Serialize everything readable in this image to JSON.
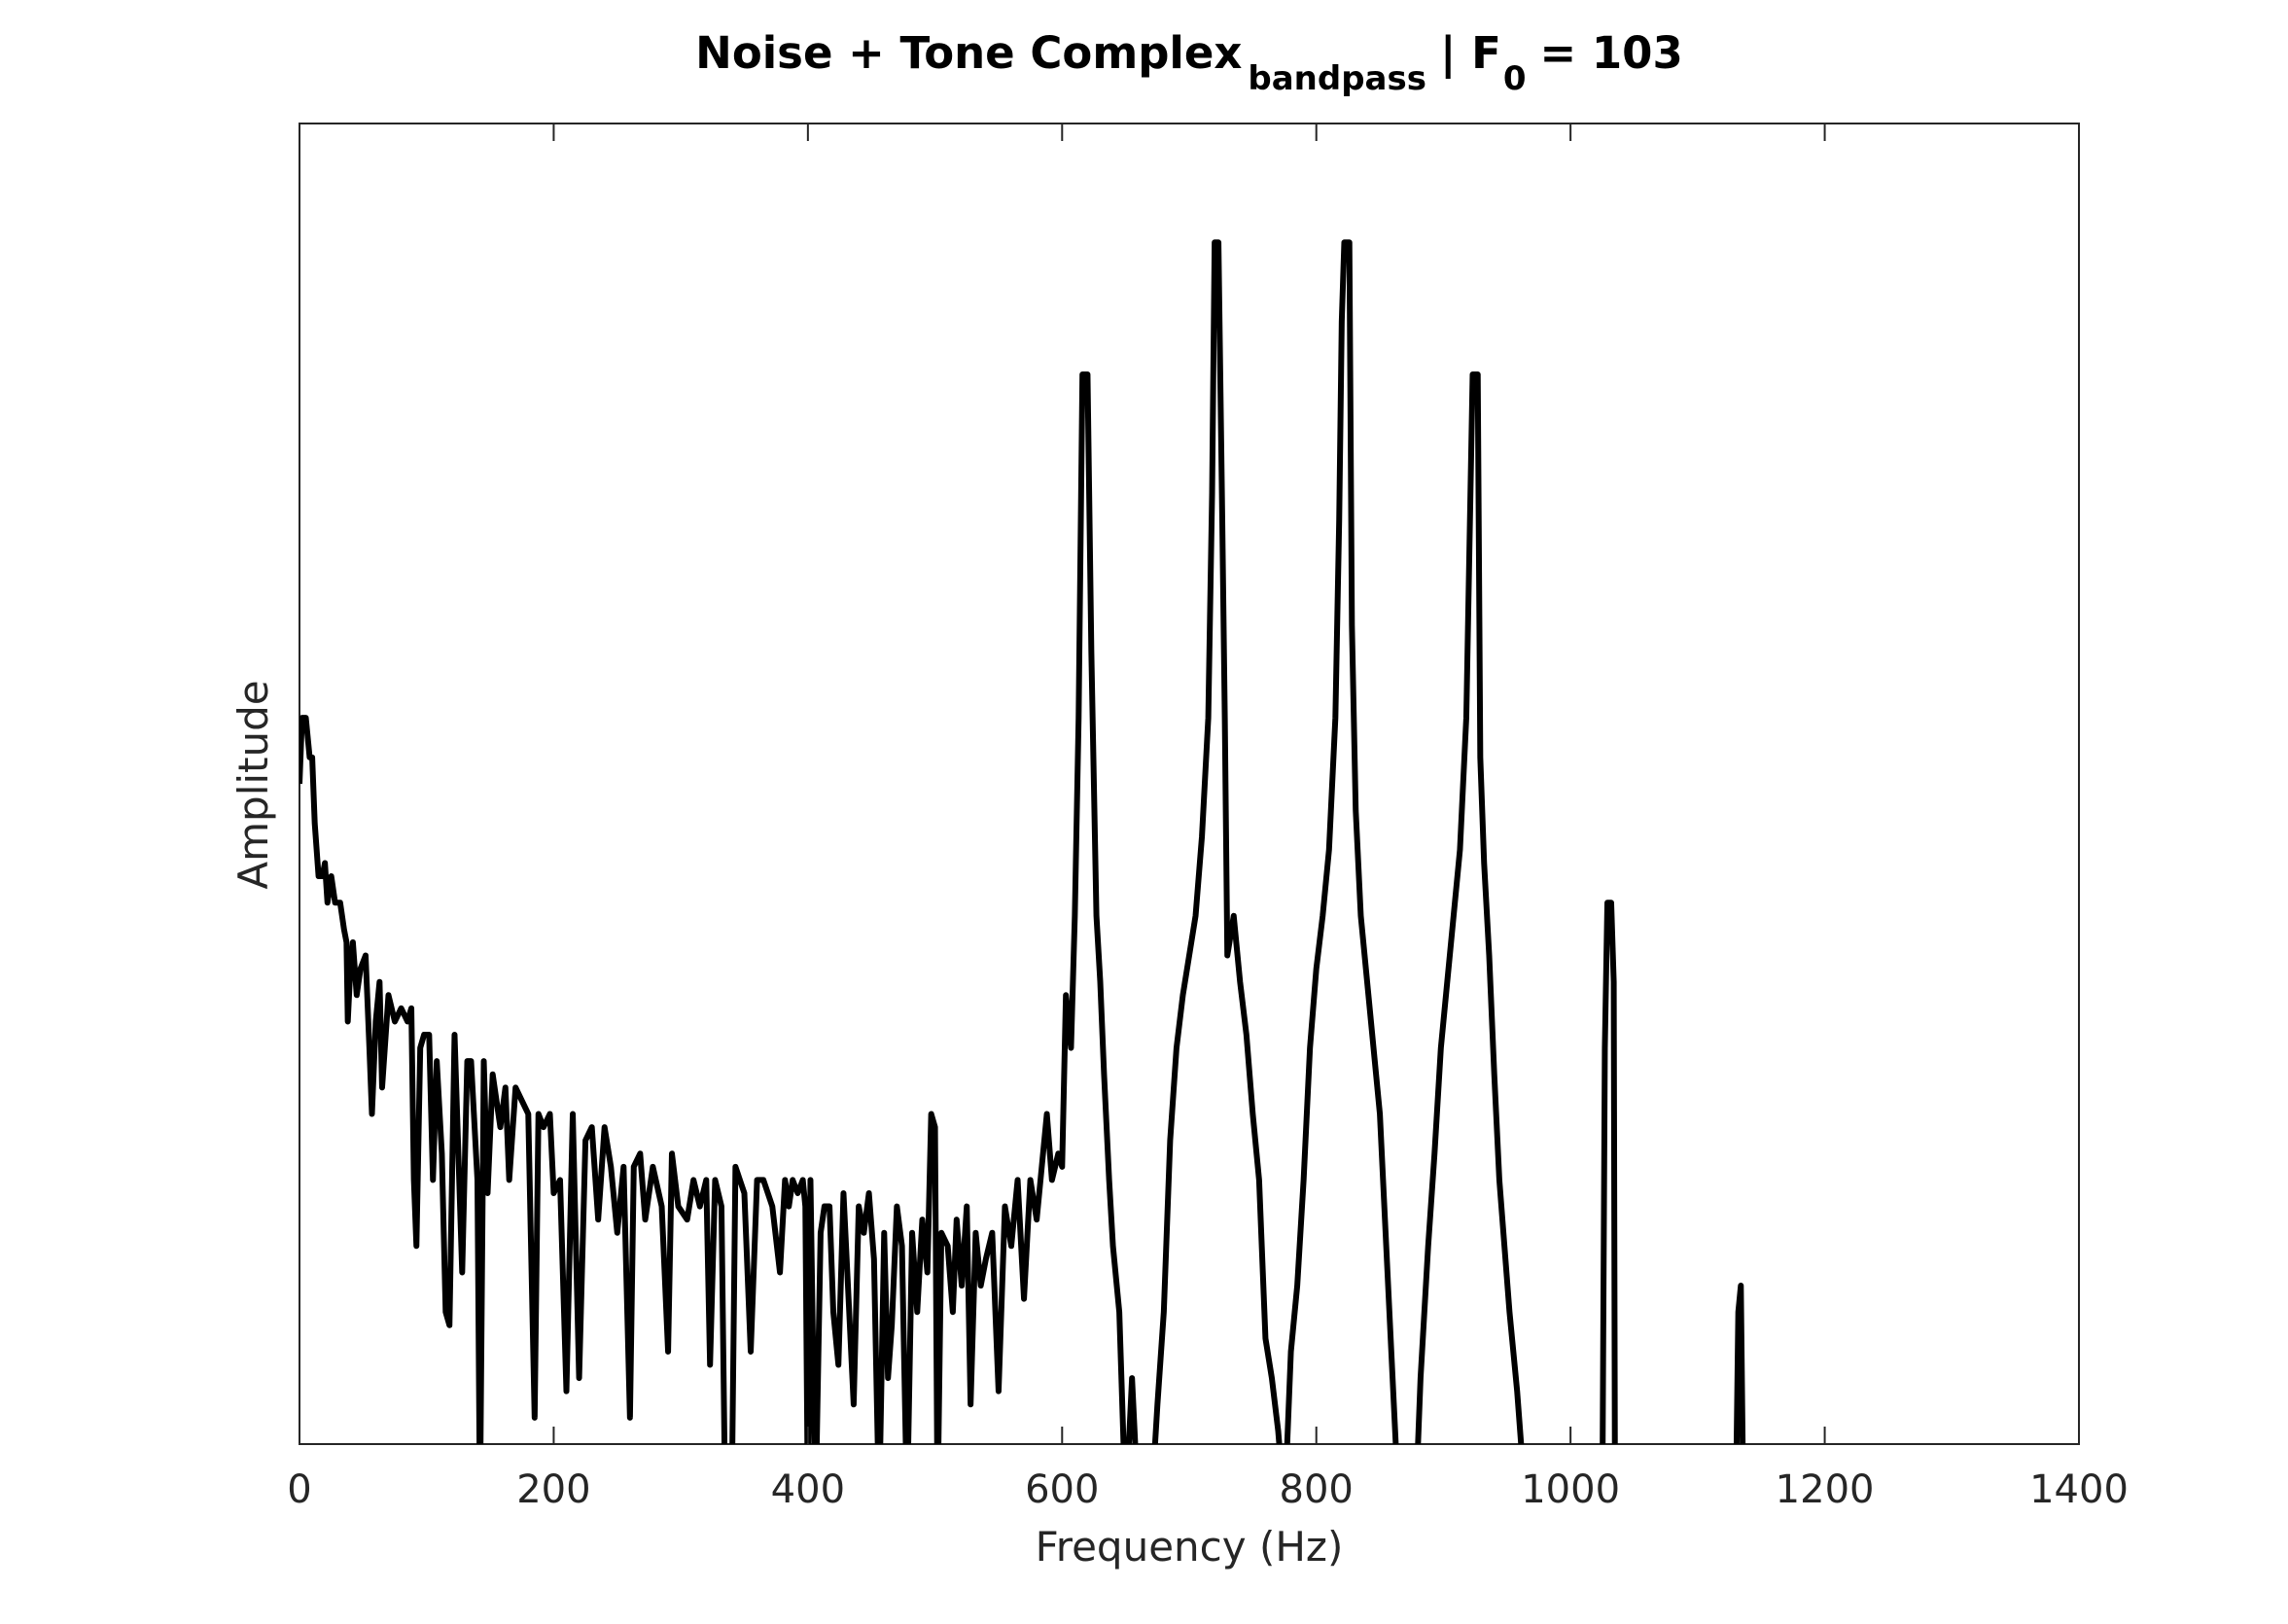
{
  "chart_data": {
    "type": "line",
    "title": {
      "main": "Noise + Tone Complex",
      "main_subscript": "bandpass",
      "param": "| F",
      "param_subscript": "0",
      "param_value": "= 103"
    },
    "x_label": "Frequency (Hz)",
    "y_label": "Amplitude",
    "xlim": [
      0,
      1400
    ],
    "xticks": [
      0,
      200,
      400,
      600,
      800,
      1000,
      1200,
      1400
    ],
    "ylim": [
      0,
      1
    ],
    "series": [
      {
        "color": "#000000",
        "x": [
          0,
          2,
          5,
          8,
          10,
          12,
          15,
          18,
          20,
          22,
          25,
          28,
          32,
          35,
          37,
          38,
          40,
          42,
          45,
          48,
          52,
          55,
          57,
          60,
          63,
          65,
          70,
          75,
          80,
          85,
          88,
          90,
          92,
          95,
          98,
          102,
          105,
          108,
          112,
          115,
          118,
          122,
          128,
          132,
          135,
          140,
          142,
          145,
          148,
          152,
          158,
          162,
          165,
          170,
          175,
          180,
          185,
          188,
          192,
          197,
          200,
          205,
          210,
          215,
          220,
          225,
          230,
          235,
          240,
          245,
          250,
          255,
          260,
          263,
          268,
          272,
          278,
          285,
          290,
          293,
          298,
          305,
          310,
          315,
          320,
          323,
          327,
          332,
          335,
          340,
          343,
          350,
          355,
          360,
          365,
          372,
          378,
          382,
          385,
          388,
          392,
          396,
          398,
          400,
          402,
          406,
          410,
          413,
          417,
          420,
          424,
          428,
          432,
          436,
          440,
          444,
          448,
          452,
          456,
          460,
          463,
          466,
          470,
          474,
          478,
          482,
          486,
          490,
          494,
          497,
          500,
          502,
          505,
          510,
          514,
          517,
          521,
          525,
          528,
          532,
          536,
          540,
          545,
          550,
          555,
          560,
          565,
          570,
          575,
          580,
          588,
          592,
          597,
          600,
          603,
          607,
          610,
          613,
          616,
          620,
          623,
          627,
          630,
          633,
          637,
          640,
          645,
          650,
          655,
          660,
          670,
          675,
          680,
          685,
          690,
          695,
          700,
          705,
          710,
          715,
          718,
          720,
          723,
          726,
          728,
          730,
          735,
          740,
          745,
          750,
          755,
          760,
          765,
          770,
          775,
          780,
          785,
          790,
          795,
          800,
          805,
          810,
          815,
          818,
          820,
          822,
          826,
          828,
          831,
          835,
          840,
          845,
          850,
          855,
          860,
          865,
          878,
          882,
          888,
          893,
          898,
          903,
          908,
          913,
          918,
          923,
          927,
          929,
          932,
          936,
          940,
          944,
          948,
          952,
          958,
          965,
          1025,
          1027,
          1029,
          1032,
          1034,
          1035,
          1130,
          1132,
          1134,
          1136
        ],
        "values": [
          0.5,
          0.55,
          0.55,
          0.52,
          0.52,
          0.47,
          0.43,
          0.43,
          0.44,
          0.41,
          0.43,
          0.41,
          0.41,
          0.39,
          0.38,
          0.32,
          0.36,
          0.38,
          0.34,
          0.36,
          0.37,
          0.3,
          0.25,
          0.32,
          0.35,
          0.27,
          0.34,
          0.32,
          0.33,
          0.32,
          0.33,
          0.2,
          0.15,
          0.3,
          0.31,
          0.31,
          0.2,
          0.29,
          0.22,
          0.1,
          0.09,
          0.31,
          0.13,
          0.29,
          0.29,
          0.2,
          -0.05,
          0.29,
          0.19,
          0.28,
          0.24,
          0.27,
          0.2,
          0.27,
          0.26,
          0.25,
          0.02,
          0.25,
          0.24,
          0.25,
          0.19,
          0.2,
          0.04,
          0.25,
          0.05,
          0.23,
          0.24,
          0.17,
          0.24,
          0.21,
          0.16,
          0.21,
          0.02,
          0.21,
          0.22,
          0.17,
          0.21,
          0.18,
          0.07,
          0.22,
          0.18,
          0.17,
          0.2,
          0.18,
          0.2,
          0.06,
          0.2,
          0.18,
          -0.05,
          -0.05,
          0.21,
          0.19,
          0.07,
          0.2,
          0.2,
          0.18,
          0.13,
          0.2,
          0.18,
          0.2,
          0.19,
          0.2,
          0.18,
          -0.05,
          0.2,
          -0.05,
          0.16,
          0.18,
          0.18,
          0.1,
          0.06,
          0.19,
          0.11,
          0.03,
          0.18,
          0.16,
          0.19,
          0.14,
          -0.05,
          0.16,
          0.05,
          0.09,
          0.18,
          0.15,
          -0.05,
          0.16,
          0.1,
          0.17,
          0.13,
          0.25,
          0.24,
          -0.05,
          0.16,
          0.15,
          0.1,
          0.17,
          0.12,
          0.18,
          0.03,
          0.16,
          0.12,
          0.14,
          0.16,
          0.04,
          0.18,
          0.15,
          0.2,
          0.11,
          0.2,
          0.17,
          0.25,
          0.2,
          0.22,
          0.21,
          0.34,
          0.3,
          0.4,
          0.55,
          0.81,
          0.81,
          0.6,
          0.4,
          0.35,
          0.28,
          0.2,
          0.15,
          0.1,
          -0.05,
          0.05,
          -0.05,
          -0.05,
          0.03,
          0.1,
          0.23,
          0.3,
          0.34,
          0.37,
          0.4,
          0.46,
          0.55,
          0.72,
          0.91,
          0.91,
          0.7,
          0.55,
          0.37,
          0.4,
          0.35,
          0.31,
          0.25,
          0.2,
          0.08,
          0.05,
          0.01,
          -0.05,
          0.07,
          0.12,
          0.2,
          0.3,
          0.36,
          0.4,
          0.45,
          0.55,
          0.7,
          0.85,
          0.91,
          0.91,
          0.62,
          0.48,
          0.4,
          0.35,
          0.3,
          0.25,
          0.15,
          0.05,
          -0.05,
          -0.05,
          0.05,
          0.15,
          0.22,
          0.3,
          0.35,
          0.4,
          0.45,
          0.55,
          0.81,
          0.81,
          0.52,
          0.44,
          0.37,
          0.28,
          0.2,
          0.15,
          0.1,
          0.04,
          -0.05,
          -0.05,
          0.3,
          0.41,
          0.41,
          0.35,
          -0.05,
          -0.05,
          0.1,
          0.12,
          -0.05
        ]
      }
    ]
  }
}
